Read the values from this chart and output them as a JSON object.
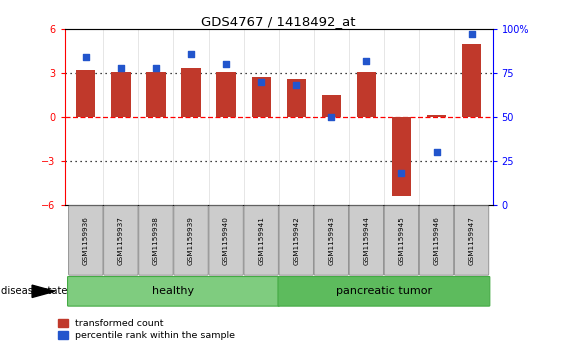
{
  "title": "GDS4767 / 1418492_at",
  "samples": [
    "GSM1159936",
    "GSM1159937",
    "GSM1159938",
    "GSM1159939",
    "GSM1159940",
    "GSM1159941",
    "GSM1159942",
    "GSM1159943",
    "GSM1159944",
    "GSM1159945",
    "GSM1159946",
    "GSM1159947"
  ],
  "bar_values": [
    3.2,
    3.05,
    3.1,
    3.35,
    3.1,
    2.7,
    2.6,
    1.5,
    3.1,
    -5.4,
    0.15,
    5.0
  ],
  "percentile_values": [
    84,
    78,
    78,
    86,
    80,
    70,
    68,
    50,
    82,
    18,
    30,
    97
  ],
  "bar_color": "#C0392B",
  "dot_color": "#2255CC",
  "ylim_left": [
    -6,
    6
  ],
  "ylim_right": [
    0,
    100
  ],
  "yticks_left": [
    -6,
    -3,
    0,
    3,
    6
  ],
  "yticks_right": [
    0,
    25,
    50,
    75,
    100
  ],
  "hlines": [
    3,
    0,
    -3
  ],
  "hline_styles": [
    "dotted",
    "dashed",
    "dotted"
  ],
  "hline_colors": [
    "black",
    "red",
    "black"
  ],
  "groups": [
    {
      "label": "healthy",
      "start": 0,
      "end": 6,
      "color": "#7FCC7F"
    },
    {
      "label": "pancreatic tumor",
      "start": 6,
      "end": 12,
      "color": "#5DBB5D"
    }
  ],
  "disease_state_label": "disease state",
  "legend_items": [
    {
      "label": "transformed count",
      "color": "#C0392B"
    },
    {
      "label": "percentile rank within the sample",
      "color": "#2255CC"
    }
  ],
  "background_color": "#FFFFFF",
  "plot_bg_color": "#FFFFFF",
  "group_box_color": "#CCCCCC",
  "bar_width": 0.55
}
